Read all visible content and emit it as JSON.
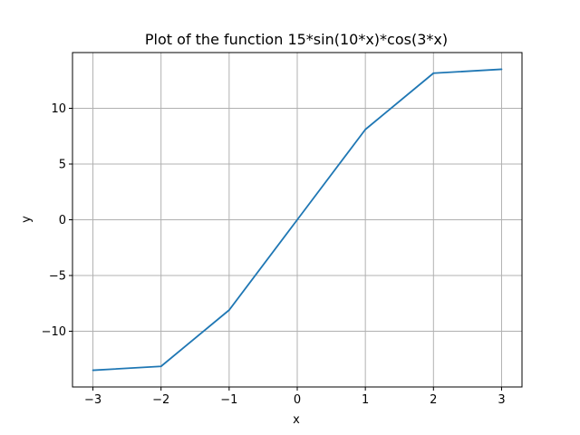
{
  "chart_data": {
    "type": "line",
    "title": "Plot of the function 15*sin(10*x)*cos(3*x)",
    "xlabel": "x",
    "ylabel": "y",
    "xlim": [
      -3.3,
      3.3
    ],
    "ylim": [
      -15,
      15
    ],
    "grid": true,
    "x_ticks": [
      {
        "value": -3,
        "label": "−3"
      },
      {
        "value": -2,
        "label": "−2"
      },
      {
        "value": -1,
        "label": "−1"
      },
      {
        "value": 0,
        "label": "0"
      },
      {
        "value": 1,
        "label": "1"
      },
      {
        "value": 2,
        "label": "2"
      },
      {
        "value": 3,
        "label": "3"
      }
    ],
    "y_ticks": [
      {
        "value": -10,
        "label": "−10"
      },
      {
        "value": -5,
        "label": "−5"
      },
      {
        "value": 0,
        "label": "0"
      },
      {
        "value": 5,
        "label": "5"
      },
      {
        "value": 10,
        "label": "10"
      }
    ],
    "series": [
      {
        "color": "#1f77b4",
        "x": [
          -3,
          -2,
          -1,
          0,
          1,
          2,
          3
        ],
        "y": [
          -13.5,
          -13.15,
          -8.1,
          0,
          8.1,
          13.15,
          13.5
        ]
      }
    ]
  }
}
